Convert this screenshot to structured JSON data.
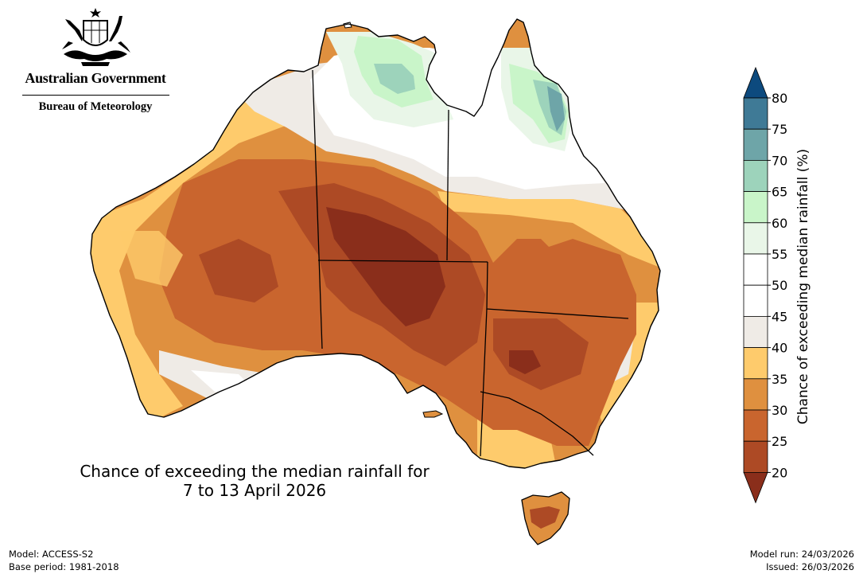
{
  "header": {
    "government": "Australian Government",
    "agency": "Bureau of Meteorology"
  },
  "map": {
    "title_line1": "Chance of exceeding the median rainfall for",
    "title_line2": "7 to 13 April 2026"
  },
  "legend": {
    "label": "Chance of exceeding median rainfall (%)",
    "ticks": [
      "80",
      "75",
      "70",
      "65",
      "60",
      "55",
      "50",
      "45",
      "40",
      "35",
      "30",
      "25",
      "20"
    ],
    "bins": [
      {
        "range": ">80",
        "color": "#0d4a7e"
      },
      {
        "range": "75-80",
        "color": "#3f7a96"
      },
      {
        "range": "70-75",
        "color": "#6ea5a8"
      },
      {
        "range": "65-70",
        "color": "#9dd3bb"
      },
      {
        "range": "60-65",
        "color": "#c9f5c9"
      },
      {
        "range": "55-60",
        "color": "#e9f6e8"
      },
      {
        "range": "50-55",
        "color": "#ffffff"
      },
      {
        "range": "45-50",
        "color": "#ffffff"
      },
      {
        "range": "40-45",
        "color": "#efebe6"
      },
      {
        "range": "35-40",
        "color": "#fecb6c"
      },
      {
        "range": "30-35",
        "color": "#df903f"
      },
      {
        "range": "25-30",
        "color": "#c9652e"
      },
      {
        "range": "20-25",
        "color": "#ad4a25"
      },
      {
        "range": "<20",
        "color": "#8a2e1b"
      }
    ]
  },
  "footer": {
    "model": "Model: ACCESS-S2",
    "base_period": "Base period: 1981-2018",
    "model_run": "Model run: 24/03/2026",
    "issued": "Issued: 26/03/2026"
  }
}
